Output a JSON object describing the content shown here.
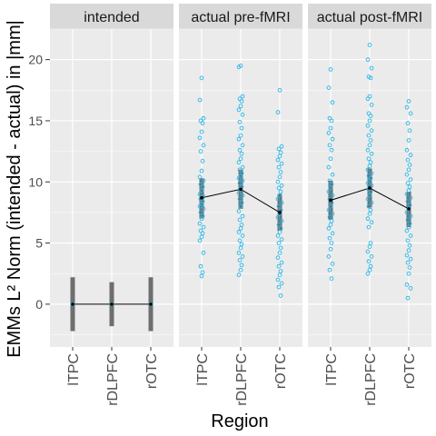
{
  "chart_data": {
    "type": "scatter",
    "ylabel": "EMMs L² Norm (intended - actual) in |mm|",
    "xlabel": "Region",
    "categories": [
      "lTPC",
      "rDLPFC",
      "rOTC"
    ],
    "ylim": [
      -3.5,
      22.5
    ],
    "yticks": [
      0,
      5,
      10,
      15,
      20
    ],
    "grid": true,
    "colors": {
      "panel_bg": "#ebebeb",
      "strip_bg": "#d9d9d9",
      "grid": "#ffffff",
      "points": "#29b6e6",
      "interval": "#6e6e6e",
      "mean_line": "#000000"
    },
    "panels": [
      {
        "strip": "intended",
        "mean": [
          0,
          0,
          0
        ],
        "interval": [
          [
            -2.2,
            2.2
          ],
          [
            -1.8,
            1.8
          ],
          [
            -2.2,
            2.2
          ]
        ],
        "points": [
          [
            0
          ],
          [
            0
          ],
          [
            0
          ]
        ]
      },
      {
        "strip": "actual pre-fMRI",
        "mean": [
          8.7,
          9.4,
          7.5
        ],
        "interval": [
          [
            7.0,
            10.3
          ],
          [
            7.8,
            11.0
          ],
          [
            6.0,
            9.0
          ]
        ],
        "points": [
          [
            18.5,
            16.7,
            15.2,
            15.0,
            14.8,
            14.1,
            13.6,
            13.0,
            12.5,
            11.7,
            10.9,
            10.4,
            10.1,
            9.8,
            9.6,
            9.3,
            9.0,
            8.8,
            8.6,
            8.4,
            8.2,
            8.0,
            7.8,
            7.5,
            7.2,
            7.0,
            6.6,
            6.3,
            6.0,
            5.8,
            5.5,
            5.2,
            4.2,
            3.1,
            2.6,
            2.3
          ],
          [
            19.5,
            19.4,
            17.0,
            16.8,
            16.6,
            16.2,
            15.9,
            15.5,
            14.9,
            14.4,
            13.8,
            13.5,
            13.0,
            12.6,
            12.3,
            11.9,
            11.6,
            11.2,
            11.0,
            10.7,
            10.5,
            10.3,
            10.1,
            9.9,
            9.6,
            9.4,
            9.1,
            8.9,
            8.6,
            8.3,
            8.0,
            7.6,
            7.2,
            6.9,
            6.5,
            6.2,
            5.9,
            5.6,
            5.2,
            4.9,
            4.6,
            4.2,
            3.9,
            3.6,
            3.2,
            2.8,
            2.4
          ],
          [
            17.5,
            15.7,
            12.9,
            12.7,
            12.4,
            12.1,
            11.8,
            11.5,
            11.2,
            10.8,
            10.4,
            10.0,
            9.7,
            9.5,
            9.2,
            8.9,
            8.6,
            8.3,
            8.0,
            7.7,
            7.4,
            7.1,
            6.8,
            6.5,
            6.2,
            5.9,
            5.6,
            5.3,
            5.0,
            4.6,
            4.2,
            3.8,
            3.4,
            3.1,
            2.7,
            2.4,
            2.0,
            1.7,
            1.4,
            0.7
          ]
        ]
      },
      {
        "strip": "actual post-fMRI",
        "mean": [
          8.5,
          9.5,
          7.8
        ],
        "interval": [
          [
            6.9,
            10.1
          ],
          [
            7.9,
            11.1
          ],
          [
            6.3,
            9.2
          ]
        ],
        "points": [
          [
            19.2,
            17.7,
            16.5,
            15.2,
            15.0,
            14.4,
            14.0,
            13.5,
            13.0,
            12.6,
            11.9,
            11.2,
            10.6,
            10.1,
            9.8,
            9.5,
            9.2,
            8.9,
            8.6,
            8.3,
            8.0,
            7.7,
            7.4,
            7.1,
            6.8,
            6.5,
            6.2,
            5.8,
            5.4,
            5.0,
            4.5,
            3.9,
            3.3,
            2.8,
            2.1
          ],
          [
            21.2,
            20.0,
            19.3,
            18.6,
            18.5,
            17.0,
            16.8,
            16.3,
            15.6,
            15.4,
            15.0,
            14.6,
            14.2,
            13.8,
            13.4,
            13.0,
            12.6,
            12.3,
            11.9,
            11.6,
            11.3,
            11.0,
            10.7,
            10.5,
            10.3,
            10.1,
            9.9,
            9.7,
            9.4,
            9.2,
            8.9,
            8.6,
            8.3,
            8.0,
            7.7,
            7.4,
            7.0,
            6.7,
            6.3,
            5.0,
            4.7,
            4.3,
            3.9,
            3.5,
            3.1,
            2.8,
            2.5
          ],
          [
            16.6,
            16.1,
            15.6,
            14.8,
            14.2,
            13.4,
            12.6,
            12.2,
            11.8,
            11.4,
            11.0,
            10.6,
            10.2,
            9.9,
            9.6,
            9.3,
            9.0,
            8.7,
            8.4,
            8.1,
            7.8,
            7.5,
            7.2,
            6.9,
            6.6,
            6.3,
            6.0,
            5.6,
            5.2,
            4.8,
            4.4,
            4.0,
            3.7,
            3.4,
            3.0,
            2.5,
            1.6,
            1.3,
            0.5
          ]
        ]
      }
    ]
  }
}
